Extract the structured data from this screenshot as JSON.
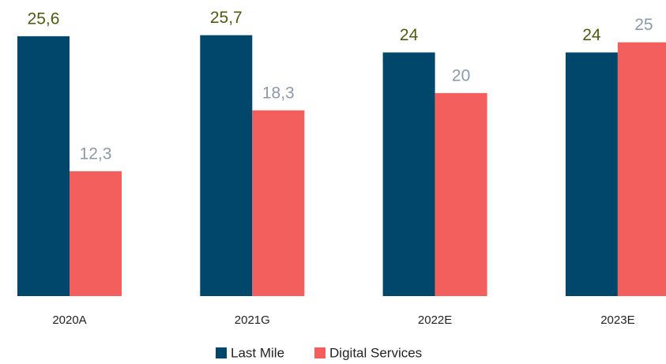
{
  "chart_data": {
    "type": "bar",
    "categories": [
      "2020A",
      "2021G",
      "2022E",
      "2023E"
    ],
    "series": [
      {
        "name": "Last Mile",
        "color": "#00476b",
        "values": [
          25.6,
          25.7,
          24,
          24
        ],
        "value_labels": [
          "25,6",
          "25,7",
          "24",
          "24"
        ]
      },
      {
        "name": "Digital Services",
        "color": "#f25f5c",
        "values": [
          12.3,
          18.3,
          20,
          25
        ],
        "value_labels": [
          "12,3",
          "18,3",
          "20",
          "25"
        ]
      }
    ],
    "ylim": [
      0,
      28
    ]
  }
}
